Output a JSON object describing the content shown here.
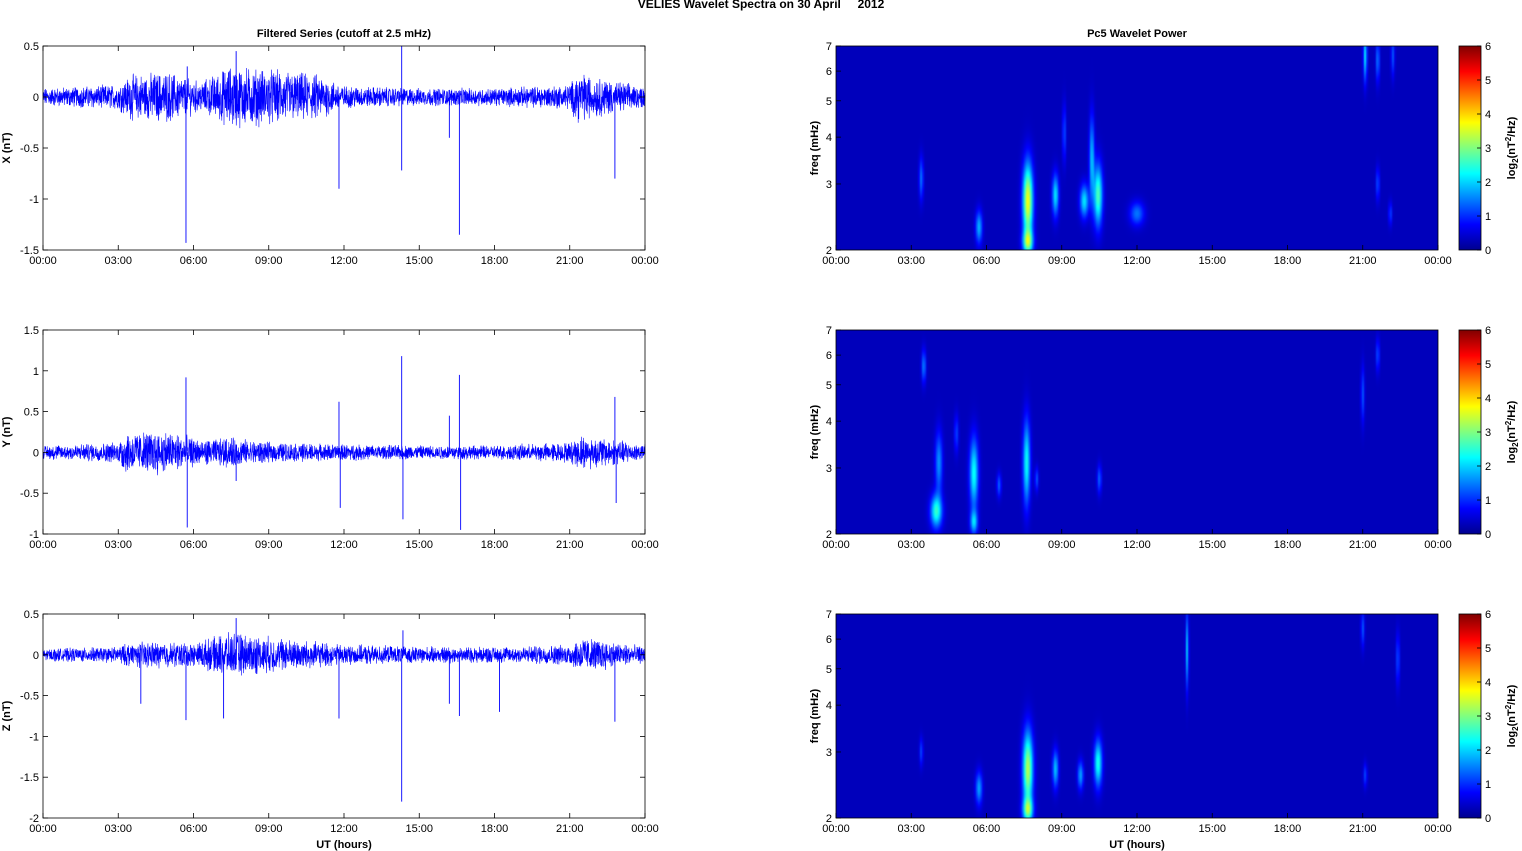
{
  "figure_title": "VELIES Wavelet Spectra on 30 April     2012",
  "chart_data": [
    {
      "type": "line",
      "panel": "time-series-x",
      "title": "Filtered Series (cutoff at 2.5 mHz)",
      "xlabel": "",
      "ylabel": "X (nT)",
      "xlim": [
        0,
        24
      ],
      "ylim": [
        -1.5,
        0.5
      ],
      "xticks": [
        "00:00",
        "03:00",
        "06:00",
        "09:00",
        "12:00",
        "15:00",
        "18:00",
        "21:00",
        "00:00"
      ],
      "yticks": [
        -1.5,
        -1,
        -0.5,
        0,
        0.5
      ],
      "line_color": "#0000ff",
      "noise_level": [
        [
          0,
          0.07
        ],
        [
          3,
          0.1
        ],
        [
          3.5,
          0.18
        ],
        [
          5,
          0.2
        ],
        [
          6.3,
          0.12
        ],
        [
          7.5,
          0.25
        ],
        [
          9,
          0.22
        ],
        [
          11,
          0.18
        ],
        [
          12,
          0.09
        ],
        [
          15,
          0.07
        ],
        [
          18,
          0.07
        ],
        [
          21,
          0.1
        ],
        [
          21.3,
          0.2
        ],
        [
          23,
          0.12
        ],
        [
          24,
          0.08
        ]
      ],
      "spikes": [
        [
          5.7,
          -1.43
        ],
        [
          5.75,
          0.3
        ],
        [
          7.7,
          0.45
        ],
        [
          11.8,
          -0.9
        ],
        [
          14.3,
          -0.72
        ],
        [
          14.3,
          0.5
        ],
        [
          16.2,
          -0.4
        ],
        [
          16.6,
          -1.35
        ],
        [
          22.8,
          -0.8
        ]
      ]
    },
    {
      "type": "line",
      "panel": "time-series-y",
      "title": "",
      "xlabel": "",
      "ylabel": "Y (nT)",
      "xlim": [
        0,
        24
      ],
      "ylim": [
        -1,
        1.5
      ],
      "xticks": [
        "00:00",
        "03:00",
        "06:00",
        "09:00",
        "12:00",
        "15:00",
        "18:00",
        "21:00",
        "00:00"
      ],
      "yticks": [
        -1,
        -0.5,
        0,
        0.5,
        1,
        1.5
      ],
      "line_color": "#0000ff",
      "noise_level": [
        [
          0,
          0.07
        ],
        [
          3,
          0.1
        ],
        [
          3.2,
          0.2
        ],
        [
          5,
          0.22
        ],
        [
          6.3,
          0.12
        ],
        [
          7.5,
          0.15
        ],
        [
          9,
          0.1
        ],
        [
          12,
          0.08
        ],
        [
          15,
          0.07
        ],
        [
          18,
          0.07
        ],
        [
          21,
          0.1
        ],
        [
          21.5,
          0.17
        ],
        [
          23,
          0.12
        ],
        [
          24,
          0.08
        ]
      ],
      "spikes": [
        [
          5.7,
          0.92
        ],
        [
          5.75,
          -0.92
        ],
        [
          7.7,
          -0.35
        ],
        [
          11.8,
          0.62
        ],
        [
          11.85,
          -0.68
        ],
        [
          14.3,
          1.18
        ],
        [
          14.35,
          -0.82
        ],
        [
          16.2,
          0.45
        ],
        [
          16.6,
          0.95
        ],
        [
          16.65,
          -0.95
        ],
        [
          22.8,
          0.68
        ],
        [
          22.85,
          -0.62
        ]
      ]
    },
    {
      "type": "line",
      "panel": "time-series-z",
      "title": "",
      "xlabel": "UT (hours)",
      "ylabel": "Z (nT)",
      "xlim": [
        0,
        24
      ],
      "ylim": [
        -2,
        0.5
      ],
      "xticks": [
        "00:00",
        "03:00",
        "06:00",
        "09:00",
        "12:00",
        "15:00",
        "18:00",
        "21:00",
        "00:00"
      ],
      "yticks": [
        -2,
        -1.5,
        -1,
        -0.5,
        0,
        0.5
      ],
      "line_color": "#0000ff",
      "noise_level": [
        [
          0,
          0.06
        ],
        [
          3,
          0.08
        ],
        [
          3.5,
          0.13
        ],
        [
          6,
          0.12
        ],
        [
          7.5,
          0.22
        ],
        [
          9,
          0.18
        ],
        [
          12,
          0.1
        ],
        [
          15,
          0.08
        ],
        [
          18,
          0.08
        ],
        [
          21,
          0.1
        ],
        [
          21.5,
          0.18
        ],
        [
          23,
          0.12
        ],
        [
          24,
          0.08
        ]
      ],
      "spikes": [
        [
          3.9,
          -0.6
        ],
        [
          5.7,
          -0.8
        ],
        [
          7.2,
          -0.78
        ],
        [
          7.7,
          0.45
        ],
        [
          11.8,
          -0.78
        ],
        [
          14.3,
          -1.8
        ],
        [
          14.35,
          0.3
        ],
        [
          16.2,
          -0.6
        ],
        [
          16.6,
          -0.75
        ],
        [
          18.2,
          -0.7
        ],
        [
          22.8,
          -0.82
        ]
      ]
    },
    {
      "type": "heatmap",
      "panel": "wavelet-power-x",
      "title": "Pc5 Wavelet Power",
      "xlabel": "",
      "ylabel": "freq (mHz)",
      "xlim": [
        0,
        24
      ],
      "ylim": [
        2,
        7
      ],
      "yscale": "log",
      "xticks": [
        "00:00",
        "03:00",
        "06:00",
        "09:00",
        "12:00",
        "15:00",
        "18:00",
        "21:00",
        "00:00"
      ],
      "yticks": [
        2,
        3,
        4,
        5,
        6,
        7
      ],
      "colorbar_label": "log2(nT2/Hz)",
      "colorbar_ticks": [
        0,
        1,
        2,
        3,
        4,
        5,
        6
      ],
      "background_value": 0.35,
      "blobs": [
        {
          "t": 3.4,
          "f": 3.1,
          "dt": 0.06,
          "lf": 0.09,
          "v": 1.1
        },
        {
          "t": 5.7,
          "f": 2.3,
          "dt": 0.09,
          "lf": 0.07,
          "v": 1.5
        },
        {
          "t": 7.65,
          "f": 2.7,
          "dt": 0.14,
          "lf": 0.16,
          "v": 3.4
        },
        {
          "t": 7.65,
          "f": 2.1,
          "dt": 0.14,
          "lf": 0.05,
          "v": 2.4
        },
        {
          "t": 8.75,
          "f": 2.8,
          "dt": 0.09,
          "lf": 0.09,
          "v": 1.8
        },
        {
          "t": 9.1,
          "f": 4.1,
          "dt": 0.05,
          "lf": 0.12,
          "v": 0.9
        },
        {
          "t": 9.9,
          "f": 2.7,
          "dt": 0.12,
          "lf": 0.07,
          "v": 1.8
        },
        {
          "t": 10.2,
          "f": 3.5,
          "dt": 0.07,
          "lf": 0.18,
          "v": 1.6
        },
        {
          "t": 10.45,
          "f": 2.8,
          "dt": 0.12,
          "lf": 0.13,
          "v": 2.4
        },
        {
          "t": 12.0,
          "f": 2.5,
          "dt": 0.2,
          "lf": 0.05,
          "v": 1.1
        },
        {
          "t": 21.1,
          "f": 6.6,
          "dt": 0.05,
          "lf": 0.11,
          "v": 1.8
        },
        {
          "t": 21.6,
          "f": 6.4,
          "dt": 0.05,
          "lf": 0.09,
          "v": 1.2
        },
        {
          "t": 22.2,
          "f": 6.6,
          "dt": 0.05,
          "lf": 0.09,
          "v": 0.9
        },
        {
          "t": 21.6,
          "f": 3.0,
          "dt": 0.05,
          "lf": 0.07,
          "v": 0.9
        },
        {
          "t": 22.1,
          "f": 2.5,
          "dt": 0.05,
          "lf": 0.05,
          "v": 0.8
        }
      ]
    },
    {
      "type": "heatmap",
      "panel": "wavelet-power-y",
      "title": "",
      "xlabel": "",
      "ylabel": "freq (mHz)",
      "xlim": [
        0,
        24
      ],
      "ylim": [
        2,
        7
      ],
      "yscale": "log",
      "xticks": [
        "00:00",
        "03:00",
        "06:00",
        "09:00",
        "12:00",
        "15:00",
        "18:00",
        "21:00",
        "00:00"
      ],
      "yticks": [
        2,
        3,
        4,
        5,
        6,
        7
      ],
      "colorbar_label": "log2(nT2/Hz)",
      "colorbar_ticks": [
        0,
        1,
        2,
        3,
        4,
        5,
        6
      ],
      "background_value": 0.35,
      "blobs": [
        {
          "t": 3.5,
          "f": 5.6,
          "dt": 0.06,
          "lf": 0.07,
          "v": 1.2
        },
        {
          "t": 4.0,
          "f": 2.3,
          "dt": 0.16,
          "lf": 0.07,
          "v": 2.2
        },
        {
          "t": 4.1,
          "f": 3.1,
          "dt": 0.1,
          "lf": 0.13,
          "v": 1.3
        },
        {
          "t": 4.8,
          "f": 3.7,
          "dt": 0.06,
          "lf": 0.08,
          "v": 0.8
        },
        {
          "t": 5.5,
          "f": 2.9,
          "dt": 0.12,
          "lf": 0.15,
          "v": 2.0
        },
        {
          "t": 5.5,
          "f": 2.15,
          "dt": 0.1,
          "lf": 0.05,
          "v": 1.6
        },
        {
          "t": 6.5,
          "f": 2.7,
          "dt": 0.06,
          "lf": 0.05,
          "v": 1.0
        },
        {
          "t": 7.6,
          "f": 3.1,
          "dt": 0.1,
          "lf": 0.18,
          "v": 2.0
        },
        {
          "t": 8.0,
          "f": 2.8,
          "dt": 0.05,
          "lf": 0.05,
          "v": 0.9
        },
        {
          "t": 10.5,
          "f": 2.8,
          "dt": 0.06,
          "lf": 0.06,
          "v": 1.0
        },
        {
          "t": 21.0,
          "f": 4.7,
          "dt": 0.05,
          "lf": 0.12,
          "v": 0.9
        },
        {
          "t": 21.6,
          "f": 6.0,
          "dt": 0.05,
          "lf": 0.07,
          "v": 0.9
        }
      ]
    },
    {
      "type": "heatmap",
      "panel": "wavelet-power-z",
      "title": "",
      "xlabel": "UT (hours)",
      "ylabel": "freq (mHz)",
      "xlim": [
        0,
        24
      ],
      "ylim": [
        2,
        7
      ],
      "yscale": "log",
      "xticks": [
        "00:00",
        "03:00",
        "06:00",
        "09:00",
        "12:00",
        "15:00",
        "18:00",
        "21:00",
        "00:00"
      ],
      "yticks": [
        2,
        3,
        4,
        5,
        6,
        7
      ],
      "colorbar_label": "log2(nT2/Hz)",
      "colorbar_ticks": [
        0,
        1,
        2,
        3,
        4,
        5,
        6
      ],
      "background_value": 0.35,
      "blobs": [
        {
          "t": 3.4,
          "f": 3.0,
          "dt": 0.05,
          "lf": 0.06,
          "v": 0.8
        },
        {
          "t": 5.7,
          "f": 2.4,
          "dt": 0.09,
          "lf": 0.07,
          "v": 1.4
        },
        {
          "t": 7.65,
          "f": 2.7,
          "dt": 0.14,
          "lf": 0.16,
          "v": 3.0
        },
        {
          "t": 7.65,
          "f": 2.1,
          "dt": 0.14,
          "lf": 0.05,
          "v": 2.3
        },
        {
          "t": 8.75,
          "f": 2.7,
          "dt": 0.08,
          "lf": 0.08,
          "v": 1.6
        },
        {
          "t": 9.75,
          "f": 2.6,
          "dt": 0.08,
          "lf": 0.06,
          "v": 1.4
        },
        {
          "t": 10.45,
          "f": 2.8,
          "dt": 0.11,
          "lf": 0.1,
          "v": 2.1
        },
        {
          "t": 14.0,
          "f": 5.6,
          "dt": 0.04,
          "lf": 0.16,
          "v": 1.6
        },
        {
          "t": 21.0,
          "f": 6.4,
          "dt": 0.05,
          "lf": 0.08,
          "v": 0.9
        },
        {
          "t": 22.4,
          "f": 5.3,
          "dt": 0.05,
          "lf": 0.11,
          "v": 0.9
        },
        {
          "t": 21.1,
          "f": 2.6,
          "dt": 0.05,
          "lf": 0.05,
          "v": 0.8
        }
      ]
    }
  ]
}
